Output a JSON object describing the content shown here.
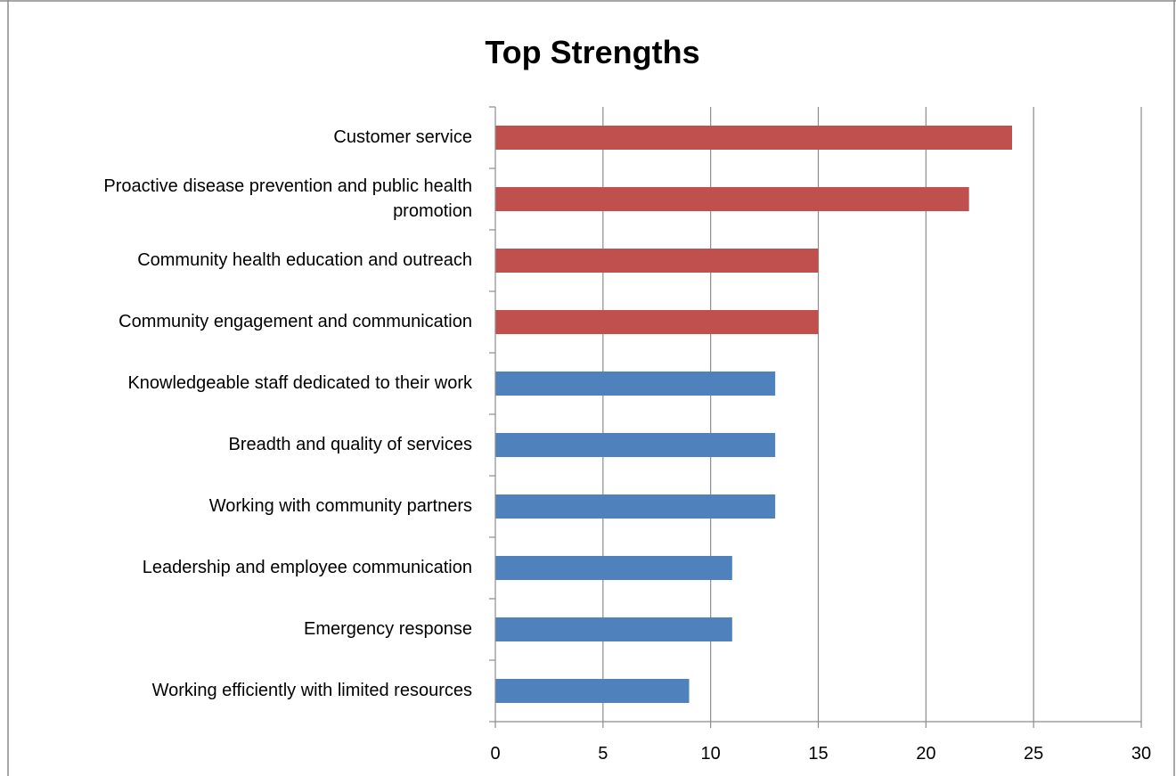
{
  "chart_data": {
    "type": "bar",
    "orientation": "horizontal",
    "title": "Top Strengths",
    "xlabel": "",
    "ylabel": "",
    "xlim": [
      0,
      30
    ],
    "x_ticks": [
      0,
      5,
      10,
      15,
      20,
      25,
      30
    ],
    "grid": "vertical",
    "legend": "none",
    "categories": [
      "Customer service",
      "Proactive disease prevention and public health promotion",
      "Community health education and outreach",
      "Community engagement and communication",
      "Knowledgeable staff dedicated to their work",
      "Breadth and quality of services",
      "Working with community partners",
      "Leadership and employee communication",
      "Emergency response",
      "Working efficiently with limited resources"
    ],
    "values": [
      24,
      22,
      15,
      15,
      13,
      13,
      13,
      11,
      11,
      9
    ],
    "bar_colors": [
      "#C0504D",
      "#C0504D",
      "#C0504D",
      "#C0504D",
      "#4F81BD",
      "#4F81BD",
      "#4F81BD",
      "#4F81BD",
      "#4F81BD",
      "#4F81BD"
    ]
  },
  "colors": {
    "highlight": "#C0504D",
    "standard": "#4F81BD",
    "gridline": "#8C8C8C",
    "border": "#8C8C8C"
  }
}
